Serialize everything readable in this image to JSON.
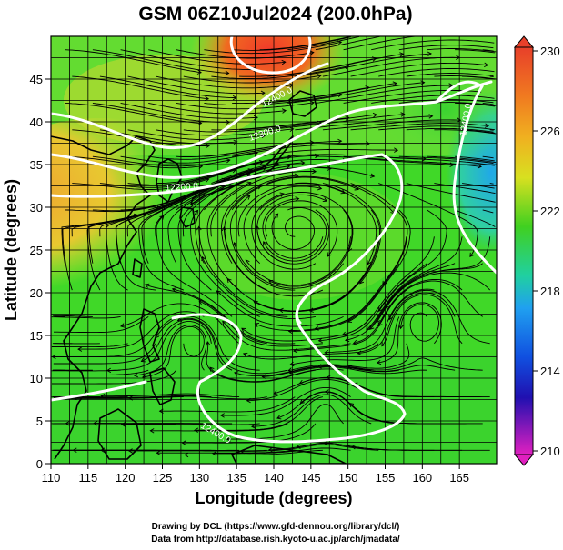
{
  "title": "GSM 06Z10Jul2024 (200.0hPa)",
  "x_axis": {
    "label": "Longitude (degrees)",
    "range": [
      110,
      170
    ],
    "ticks": [
      "110",
      "115",
      "120",
      "125",
      "130",
      "135",
      "140",
      "145",
      "150",
      "155",
      "160",
      "165"
    ],
    "tick_values": [
      110,
      115,
      120,
      125,
      130,
      135,
      140,
      145,
      150,
      155,
      160,
      165
    ]
  },
  "y_axis": {
    "label": "Latitude (degrees)",
    "range": [
      0,
      50
    ],
    "ticks": [
      "0",
      "5",
      "10",
      "15",
      "20",
      "25",
      "30",
      "35",
      "40",
      "45"
    ],
    "tick_values": [
      0,
      5,
      10,
      15,
      20,
      25,
      30,
      35,
      40,
      45
    ]
  },
  "colorbar": {
    "labels": [
      "230",
      "226",
      "222",
      "218",
      "214",
      "210"
    ],
    "values": [
      230,
      226,
      222,
      218,
      214,
      210
    ],
    "range": [
      210,
      230
    ],
    "colors": {
      "230": "#e8402a",
      "226": "#f0a020",
      "222": "#30d020",
      "218": "#20a0f0",
      "214": "#1020c0",
      "210": "#e020c0"
    }
  },
  "contours": {
    "labels": [
      "12400.0",
      "12300.0",
      "12200.0",
      "12400.0",
      "12400.0"
    ],
    "color": "#ffffff"
  },
  "credits": {
    "line1": "Drawing by DCL (https://www.gfd-dennou.org/library/dcl/)",
    "line2": "Data from http://database.rish.kyoto-u.ac.jp/arch/jmadata/"
  }
}
